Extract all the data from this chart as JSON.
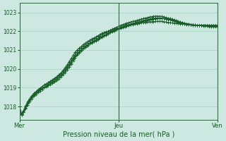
{
  "title": "",
  "xlabel": "Pression niveau de la mer( hPa )",
  "ylabel": "",
  "bg_color": "#cce8e0",
  "plot_bg_color": "#cce8e0",
  "grid_color": "#99ccbb",
  "line_color": "#1a5c2a",
  "tick_label_color": "#1a5c2a",
  "axis_color": "#336644",
  "ylim": [
    1017.3,
    1023.5
  ],
  "yticks": [
    1018,
    1019,
    1020,
    1021,
    1022,
    1023
  ],
  "xtick_labels": [
    "Mer",
    "Jeu",
    "Ven"
  ],
  "x_total": 97,
  "xtick_positions": [
    0,
    48,
    96
  ],
  "series": [
    [
      1018.0,
      1017.55,
      1017.75,
      1018.0,
      1018.2,
      1018.4,
      1018.55,
      1018.65,
      1018.75,
      1018.85,
      1018.95,
      1019.05,
      1019.15,
      1019.2,
      1019.28,
      1019.35,
      1019.42,
      1019.5,
      1019.58,
      1019.68,
      1019.78,
      1019.9,
      1020.05,
      1020.2,
      1020.38,
      1020.55,
      1020.72,
      1020.88,
      1021.0,
      1021.1,
      1021.2,
      1021.3,
      1021.38,
      1021.45,
      1021.52,
      1021.58,
      1021.64,
      1021.7,
      1021.76,
      1021.82,
      1021.88,
      1021.93,
      1021.97,
      1022.0,
      1022.03,
      1022.06,
      1022.1,
      1022.13,
      1022.16,
      1022.2,
      1022.22,
      1022.25,
      1022.28,
      1022.3,
      1022.33,
      1022.35,
      1022.38,
      1022.4,
      1022.42,
      1022.44,
      1022.45,
      1022.47,
      1022.48,
      1022.5,
      1022.5,
      1022.51,
      1022.52,
      1022.52,
      1022.52,
      1022.52,
      1022.5,
      1022.48,
      1022.47,
      1022.45,
      1022.44,
      1022.43,
      1022.42,
      1022.41,
      1022.4,
      1022.4,
      1022.38,
      1022.36,
      1022.35,
      1022.34,
      1022.33,
      1022.32,
      1022.31,
      1022.3,
      1022.3,
      1022.28,
      1022.27,
      1022.26,
      1022.25,
      1022.25,
      1022.24,
      1022.23,
      1022.22
    ],
    [
      1018.0,
      1017.55,
      1017.7,
      1017.9,
      1018.1,
      1018.28,
      1018.42,
      1018.55,
      1018.65,
      1018.75,
      1018.84,
      1018.92,
      1019.0,
      1019.06,
      1019.12,
      1019.18,
      1019.24,
      1019.3,
      1019.38,
      1019.47,
      1019.57,
      1019.68,
      1019.8,
      1019.95,
      1020.1,
      1020.27,
      1020.44,
      1020.6,
      1020.74,
      1020.86,
      1020.97,
      1021.07,
      1021.16,
      1021.24,
      1021.32,
      1021.38,
      1021.44,
      1021.5,
      1021.56,
      1021.62,
      1021.68,
      1021.74,
      1021.8,
      1021.86,
      1021.92,
      1021.97,
      1022.02,
      1022.07,
      1022.12,
      1022.17,
      1022.21,
      1022.25,
      1022.29,
      1022.32,
      1022.35,
      1022.38,
      1022.41,
      1022.44,
      1022.47,
      1022.5,
      1022.52,
      1022.55,
      1022.57,
      1022.6,
      1022.62,
      1022.64,
      1022.66,
      1022.67,
      1022.68,
      1022.68,
      1022.67,
      1022.66,
      1022.64,
      1022.62,
      1022.6,
      1022.57,
      1022.54,
      1022.51,
      1022.48,
      1022.45,
      1022.42,
      1022.4,
      1022.38,
      1022.36,
      1022.34,
      1022.33,
      1022.32,
      1022.32,
      1022.31,
      1022.3,
      1022.3,
      1022.3,
      1022.29,
      1022.29,
      1022.28,
      1022.28,
      1022.27
    ],
    [
      1018.0,
      1017.55,
      1017.72,
      1017.95,
      1018.15,
      1018.33,
      1018.48,
      1018.6,
      1018.7,
      1018.8,
      1018.89,
      1018.97,
      1019.05,
      1019.11,
      1019.17,
      1019.23,
      1019.3,
      1019.37,
      1019.45,
      1019.54,
      1019.64,
      1019.75,
      1019.87,
      1020.02,
      1020.17,
      1020.33,
      1020.5,
      1020.65,
      1020.78,
      1020.9,
      1021.01,
      1021.11,
      1021.2,
      1021.28,
      1021.36,
      1021.42,
      1021.48,
      1021.54,
      1021.6,
      1021.66,
      1021.72,
      1021.78,
      1021.84,
      1021.9,
      1021.96,
      1022.01,
      1022.06,
      1022.11,
      1022.16,
      1022.21,
      1022.25,
      1022.29,
      1022.33,
      1022.36,
      1022.39,
      1022.42,
      1022.45,
      1022.48,
      1022.51,
      1022.54,
      1022.57,
      1022.6,
      1022.62,
      1022.65,
      1022.67,
      1022.69,
      1022.7,
      1022.7,
      1022.7,
      1022.69,
      1022.67,
      1022.64,
      1022.62,
      1022.59,
      1022.56,
      1022.53,
      1022.5,
      1022.47,
      1022.44,
      1022.41,
      1022.39,
      1022.37,
      1022.35,
      1022.33,
      1022.32,
      1022.31,
      1022.3,
      1022.3,
      1022.3,
      1022.3,
      1022.3,
      1022.3,
      1022.3,
      1022.3,
      1022.3,
      1022.3,
      1022.3
    ],
    [
      1018.0,
      1017.6,
      1017.8,
      1018.05,
      1018.25,
      1018.43,
      1018.58,
      1018.7,
      1018.8,
      1018.9,
      1018.99,
      1019.07,
      1019.15,
      1019.21,
      1019.27,
      1019.33,
      1019.39,
      1019.47,
      1019.55,
      1019.64,
      1019.74,
      1019.85,
      1019.97,
      1020.12,
      1020.27,
      1020.43,
      1020.6,
      1020.75,
      1020.88,
      1021.0,
      1021.11,
      1021.21,
      1021.3,
      1021.38,
      1021.46,
      1021.52,
      1021.58,
      1021.64,
      1021.7,
      1021.76,
      1021.82,
      1021.88,
      1021.94,
      1022.0,
      1022.06,
      1022.11,
      1022.16,
      1022.21,
      1022.26,
      1022.31,
      1022.35,
      1022.39,
      1022.43,
      1022.46,
      1022.49,
      1022.52,
      1022.55,
      1022.58,
      1022.61,
      1022.64,
      1022.67,
      1022.7,
      1022.72,
      1022.75,
      1022.77,
      1022.79,
      1022.8,
      1022.8,
      1022.79,
      1022.78,
      1022.76,
      1022.73,
      1022.7,
      1022.67,
      1022.64,
      1022.61,
      1022.57,
      1022.53,
      1022.49,
      1022.46,
      1022.43,
      1022.4,
      1022.38,
      1022.36,
      1022.34,
      1022.33,
      1022.32,
      1022.32,
      1022.32,
      1022.32,
      1022.32,
      1022.32,
      1022.32,
      1022.32,
      1022.32,
      1022.32,
      1022.32
    ]
  ]
}
